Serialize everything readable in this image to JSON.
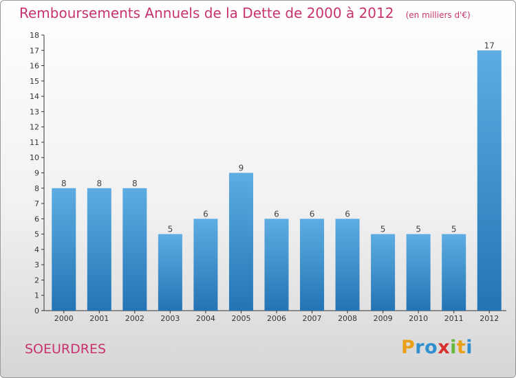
{
  "header": {
    "title": "Remboursements Annuels de la Dette de 2000 à 2012",
    "unit": "(en milliers d'€)"
  },
  "commune": "SOEURDRES",
  "logo": {
    "letters": [
      "P",
      "r",
      "o",
      "x",
      "i",
      "t",
      "i"
    ],
    "colors": [
      "#e8a019",
      "#2f8fd0",
      "#2f8fd0",
      "#d8302f",
      "#67b83c",
      "#e8a019",
      "#2f8fd0"
    ]
  },
  "colors": {
    "bar_top": "#5dade2",
    "bar_bottom": "#2474b5",
    "title": "#c8326e"
  },
  "chart_data": {
    "type": "bar",
    "title": "Remboursements Annuels de la Dette de 2000 à 2012",
    "categories": [
      "2000",
      "2001",
      "2002",
      "2003",
      "2004",
      "2005",
      "2006",
      "2007",
      "2008",
      "2009",
      "2010",
      "2011",
      "2012"
    ],
    "values": [
      8,
      8,
      8,
      5,
      6,
      9,
      6,
      6,
      6,
      5,
      5,
      5,
      17
    ],
    "data_labels": [
      "8",
      "8",
      "8",
      "5",
      "6",
      "9",
      "6",
      "6",
      "6",
      "5",
      "5",
      "5",
      "17"
    ],
    "yticks": [
      "0",
      "1",
      "2",
      "3",
      "4",
      "5",
      "6",
      "7",
      "8",
      "9",
      "10",
      "11",
      "12",
      "13",
      "14",
      "15",
      "16",
      "17",
      "18"
    ],
    "ylim": [
      0,
      18
    ],
    "xlabel": "",
    "ylabel": "",
    "grid": false
  }
}
